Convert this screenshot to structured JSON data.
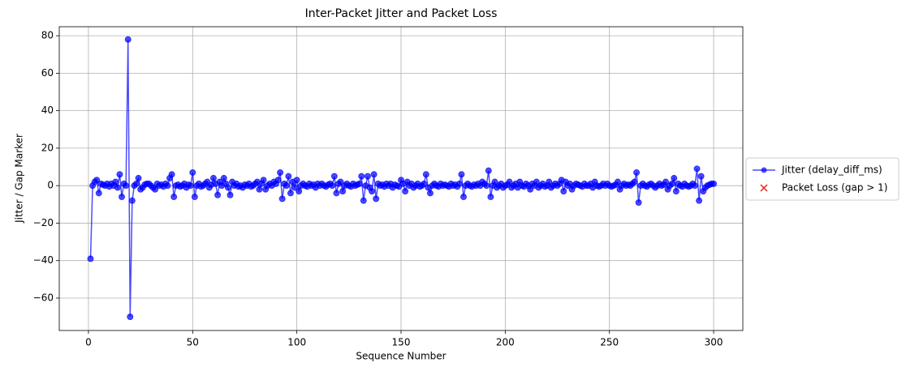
{
  "chart_data": {
    "type": "line",
    "title": "Inter-Packet Jitter and Packet Loss",
    "xlabel": "Sequence Number",
    "ylabel": "Jitter / Gap Marker",
    "xlim": [
      -14,
      314
    ],
    "ylim": [
      -77.3,
      84.8
    ],
    "xticks": [
      0,
      50,
      100,
      150,
      200,
      250,
      300
    ],
    "yticks": [
      {
        "value": -60,
        "label": "−60"
      },
      {
        "value": -40,
        "label": "−40"
      },
      {
        "value": -20,
        "label": "−20"
      },
      0,
      20,
      40,
      60,
      80
    ],
    "grid": true,
    "legend": "outside right",
    "x": [
      1,
      2,
      3,
      4,
      5,
      6,
      7,
      8,
      9,
      10,
      11,
      12,
      13,
      14,
      15,
      16,
      17,
      18,
      19,
      20,
      21,
      22,
      23,
      24,
      25,
      26,
      27,
      28,
      29,
      30,
      31,
      32,
      33,
      34,
      35,
      36,
      37,
      38,
      39,
      40,
      41,
      42,
      43,
      44,
      45,
      46,
      47,
      48,
      49,
      50,
      51,
      52,
      53,
      54,
      55,
      56,
      57,
      58,
      59,
      60,
      61,
      62,
      63,
      64,
      65,
      66,
      67,
      68,
      69,
      70,
      71,
      72,
      73,
      74,
      75,
      76,
      77,
      78,
      79,
      80,
      81,
      82,
      83,
      84,
      85,
      86,
      87,
      88,
      89,
      90,
      91,
      92,
      93,
      94,
      95,
      96,
      97,
      98,
      99,
      100,
      101,
      102,
      103,
      104,
      105,
      106,
      107,
      108,
      109,
      110,
      111,
      112,
      113,
      114,
      115,
      116,
      117,
      118,
      119,
      120,
      121,
      122,
      123,
      124,
      125,
      126,
      127,
      128,
      129,
      130,
      131,
      132,
      133,
      134,
      135,
      136,
      137,
      138,
      139,
      140,
      141,
      142,
      143,
      144,
      145,
      146,
      147,
      148,
      149,
      150,
      151,
      152,
      153,
      154,
      155,
      156,
      157,
      158,
      159,
      160,
      161,
      162,
      163,
      164,
      165,
      166,
      167,
      168,
      169,
      170,
      171,
      172,
      173,
      174,
      175,
      176,
      177,
      178,
      179,
      180,
      181,
      182,
      183,
      184,
      185,
      186,
      187,
      188,
      189,
      190,
      191,
      192,
      193,
      194,
      195,
      196,
      197,
      198,
      199,
      200,
      201,
      202,
      203,
      204,
      205,
      206,
      207,
      208,
      209,
      210,
      211,
      212,
      213,
      214,
      215,
      216,
      217,
      218,
      219,
      220,
      221,
      222,
      223,
      224,
      225,
      226,
      227,
      228,
      229,
      230,
      231,
      232,
      233,
      234,
      235,
      236,
      237,
      238,
      239,
      240,
      241,
      242,
      243,
      244,
      245,
      246,
      247,
      248,
      249,
      250,
      251,
      252,
      253,
      254,
      255,
      256,
      257,
      258,
      259,
      260,
      261,
      262,
      263,
      264,
      265,
      266,
      267,
      268,
      269,
      270,
      271,
      272,
      273,
      274,
      275,
      276,
      277,
      278,
      279,
      280,
      281,
      282,
      283,
      284,
      285,
      286,
      287,
      288,
      289,
      290,
      291,
      292,
      293,
      294,
      295,
      296,
      297,
      298,
      299,
      300
    ],
    "series": [
      {
        "name": "Jitter (delay_diff_ms)",
        "color": "#0000ff",
        "marker": "o",
        "values": [
          -39,
          0,
          2,
          3,
          -4,
          1,
          0.5,
          0,
          1,
          -0.5,
          1,
          0,
          2,
          -1,
          6,
          -6,
          1,
          0,
          78,
          -70,
          -8,
          0,
          1,
          4,
          -2,
          -1,
          0.5,
          1,
          1,
          0,
          -1,
          -2,
          1,
          0,
          0.5,
          -0.5,
          1,
          0,
          4,
          6,
          -6,
          0,
          0.5,
          -0.5,
          0,
          1,
          -1,
          0.5,
          0,
          7,
          -6,
          0,
          1,
          -0.5,
          0,
          1,
          2,
          -1,
          0.5,
          4,
          1,
          -5,
          2,
          0,
          4,
          1,
          -1,
          -5,
          2,
          0,
          1,
          -0.5,
          0,
          -1,
          0.5,
          0,
          1,
          -0.5,
          0,
          1,
          2,
          -2,
          1,
          3,
          -2,
          0,
          1,
          0,
          2,
          1,
          3,
          7,
          -7,
          1,
          0,
          5,
          -4,
          2,
          -1,
          3,
          -3,
          0,
          1,
          0,
          -0.5,
          1,
          0,
          0.5,
          -1,
          1,
          0,
          1,
          0,
          -0.5,
          0.5,
          1,
          0,
          5,
          -4,
          1,
          2,
          -3,
          0,
          1,
          0,
          -0.5,
          1,
          0,
          0.5,
          1,
          5,
          -8,
          0,
          5,
          -1,
          -3,
          6,
          -7,
          1,
          0,
          0.5,
          -0.5,
          1,
          0,
          1,
          -1,
          0.5,
          0,
          -0.5,
          3,
          1,
          -3,
          2,
          0,
          1,
          -1,
          0,
          1,
          -0.5,
          0,
          1,
          6,
          -1,
          -4,
          0,
          1,
          0,
          -0.5,
          1,
          0,
          0.5,
          0,
          -0.5,
          1,
          0,
          0.5,
          -0.5,
          1,
          6,
          -6,
          0,
          1,
          0,
          -0.5,
          0.5,
          0,
          1,
          0,
          2,
          1,
          0,
          8,
          -6,
          0,
          2,
          -1,
          0,
          1,
          -1,
          0,
          0.5,
          2,
          -1,
          0,
          1,
          -1,
          2,
          0,
          -0.5,
          1,
          0,
          -2,
          1,
          0,
          2,
          -1,
          0,
          1,
          -0.5,
          0,
          2,
          -1,
          0,
          1,
          0,
          1,
          3,
          -3,
          2,
          0,
          1,
          -2,
          0,
          1,
          0.5,
          0,
          -0.5,
          1,
          0,
          0,
          1,
          -1,
          2,
          0,
          -0.5,
          0,
          1,
          0,
          1,
          0,
          -0.5,
          0,
          0.5,
          2,
          -2,
          0,
          1,
          0,
          0.5,
          0,
          1,
          2,
          7,
          -9,
          0,
          1,
          0,
          -0.5,
          0.5,
          1,
          0,
          -1,
          0,
          1,
          0,
          0.5,
          2,
          -2,
          0,
          1,
          4,
          -3,
          1,
          0,
          -0.5,
          1,
          0,
          -0.5,
          0,
          1,
          0,
          9,
          -8,
          5,
          -3,
          -1,
          0,
          0.5,
          1,
          1
        ]
      },
      {
        "name": "Packet Loss (gap > 1)",
        "color": "#e8231f",
        "marker": "x",
        "x": [],
        "values": []
      }
    ]
  }
}
